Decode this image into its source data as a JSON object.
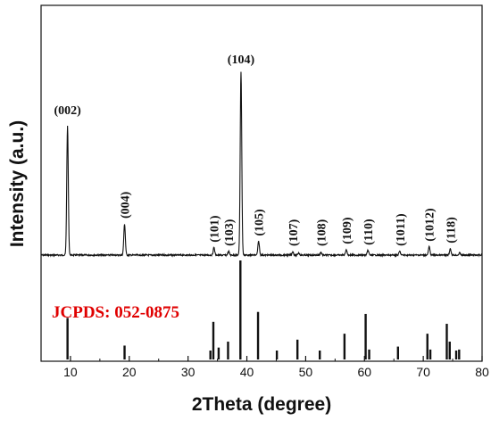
{
  "chart_data": {
    "type": "line",
    "xlabel": "2Theta (degree)",
    "ylabel": "Intensity (a.u.)",
    "xlim": [
      5,
      80
    ],
    "x_ticks": [
      10,
      20,
      30,
      40,
      50,
      60,
      70,
      80
    ],
    "grid": false,
    "series": [
      {
        "peaks": [
          {
            "x": 9.5,
            "h": 0.7,
            "label": "(002)"
          },
          {
            "x": 19.2,
            "h": 0.17,
            "label": "(004)"
          },
          {
            "x": 34.4,
            "h": 0.04,
            "label": "(101)"
          },
          {
            "x": 36.9,
            "h": 0.02,
            "label": "(103)"
          },
          {
            "x": 39.0,
            "h": 1.0,
            "label": "(104)"
          },
          {
            "x": 42.0,
            "h": 0.075,
            "label": "(105)"
          },
          {
            "x": 47.8,
            "h": 0.018,
            "label": "(107)"
          },
          {
            "x": 48.8,
            "h": 0.012,
            "label": ""
          },
          {
            "x": 52.6,
            "h": 0.015,
            "label": "(108)"
          },
          {
            "x": 56.9,
            "h": 0.03,
            "label": "(109)"
          },
          {
            "x": 60.6,
            "h": 0.025,
            "label": "(110)"
          },
          {
            "x": 66.0,
            "h": 0.02,
            "label": "(1011)"
          },
          {
            "x": 71.0,
            "h": 0.045,
            "label": "(1012)"
          },
          {
            "x": 74.6,
            "h": 0.035,
            "label": "(118)"
          },
          {
            "x": 76.2,
            "h": 0.012,
            "label": ""
          }
        ]
      }
    ],
    "reference": {
      "label": "JCPDS: 052-0875",
      "color": "#e00000",
      "lines": [
        {
          "x": 9.5,
          "h": 0.42
        },
        {
          "x": 19.2,
          "h": 0.14
        },
        {
          "x": 33.8,
          "h": 0.09
        },
        {
          "x": 34.3,
          "h": 0.38
        },
        {
          "x": 35.2,
          "h": 0.12
        },
        {
          "x": 36.8,
          "h": 0.18
        },
        {
          "x": 38.9,
          "h": 1.0
        },
        {
          "x": 41.9,
          "h": 0.48
        },
        {
          "x": 45.1,
          "h": 0.09
        },
        {
          "x": 48.6,
          "h": 0.2
        },
        {
          "x": 52.4,
          "h": 0.09
        },
        {
          "x": 56.6,
          "h": 0.26
        },
        {
          "x": 60.2,
          "h": 0.46
        },
        {
          "x": 60.8,
          "h": 0.1
        },
        {
          "x": 65.7,
          "h": 0.13
        },
        {
          "x": 70.7,
          "h": 0.26
        },
        {
          "x": 71.2,
          "h": 0.1
        },
        {
          "x": 74.0,
          "h": 0.36
        },
        {
          "x": 74.5,
          "h": 0.18
        },
        {
          "x": 75.6,
          "h": 0.09
        },
        {
          "x": 76.1,
          "h": 0.1
        }
      ]
    }
  }
}
